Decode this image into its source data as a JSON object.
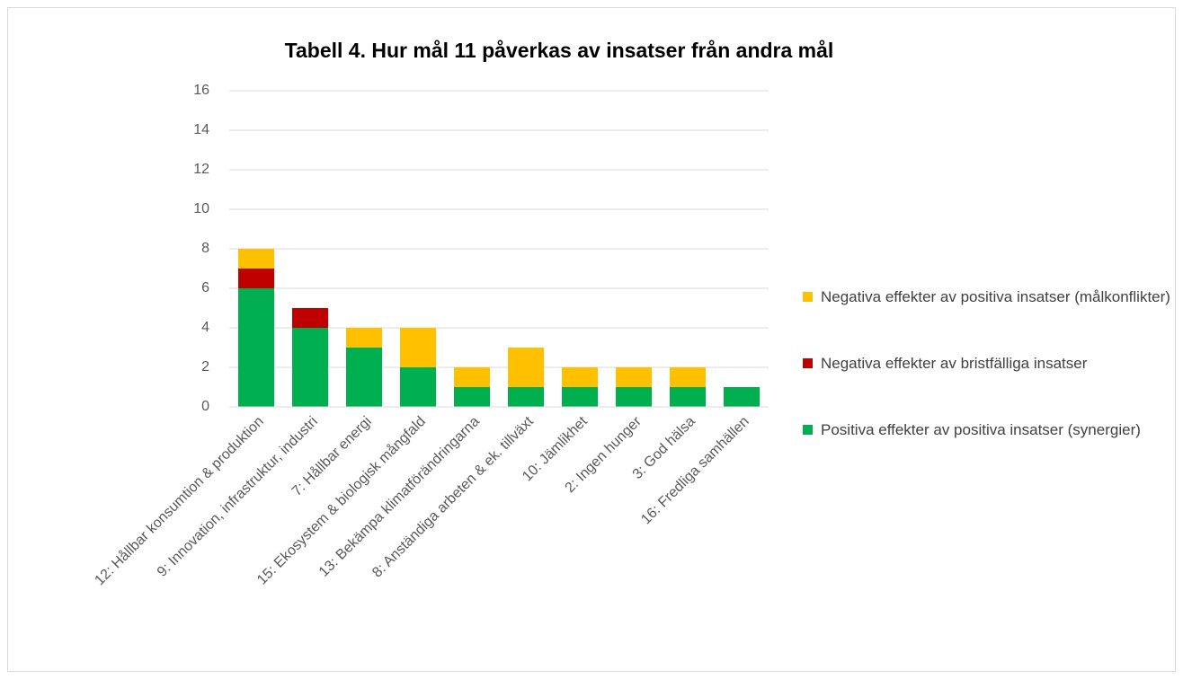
{
  "chart_data": {
    "type": "stacked_bar",
    "title": "Tabell 4. Hur mål 11 påverkas av insatser från andra mål",
    "categories": [
      "12: Hållbar konsumtion & produktion",
      "9: Innovation, infrastruktur, industri",
      "7: Hållbar energi",
      "15: Ekosystem & biologisk mångfald",
      "13: Bekämpa klimatförändringarna",
      "8: Anständiga arbeten & ek. tillväxt",
      "10: Jämlikhet",
      "2: Ingen hunger",
      "3: God hälsa",
      "16: Fredliga samhällen"
    ],
    "series": [
      {
        "name": "Positiva effekter av positiva insatser (synergier)",
        "color": "#00b050",
        "values": [
          6,
          4,
          3,
          2,
          1,
          1,
          1,
          1,
          1,
          1
        ]
      },
      {
        "name": "Negativa effekter av bristfälliga insatser",
        "color": "#c00000",
        "values": [
          1,
          1,
          0,
          0,
          0,
          0,
          0,
          0,
          0,
          0
        ]
      },
      {
        "name": "Negativa effekter av positiva insatser (målkonflikter)",
        "color": "#ffc000",
        "values": [
          1,
          0,
          1,
          2,
          1,
          2,
          1,
          1,
          1,
          0
        ]
      }
    ],
    "ylim": [
      0,
      16
    ],
    "yticks": [
      0,
      2,
      4,
      6,
      8,
      10,
      12,
      14,
      16
    ],
    "grid": true,
    "legend": "right"
  }
}
